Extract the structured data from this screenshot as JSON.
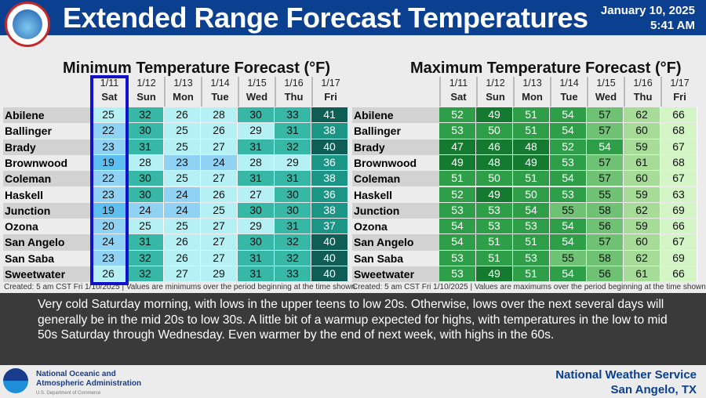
{
  "header": {
    "title": "Extended Range Forecast Temperatures",
    "date": "January 10, 2025",
    "time": "5:41 AM",
    "logo_text": "NATIONAL WEATHER SERVICE"
  },
  "columns": [
    {
      "date": "1/11",
      "day": "Sat"
    },
    {
      "date": "1/12",
      "day": "Sun"
    },
    {
      "date": "1/13",
      "day": "Mon"
    },
    {
      "date": "1/14",
      "day": "Tue"
    },
    {
      "date": "1/15",
      "day": "Wed"
    },
    {
      "date": "1/16",
      "day": "Thu"
    },
    {
      "date": "1/17",
      "day": "Fri"
    }
  ],
  "cities": [
    "Abilene",
    "Ballinger",
    "Brady",
    "Brownwood",
    "Coleman",
    "Haskell",
    "Junction",
    "Ozona",
    "San Angelo",
    "San Saba",
    "Sweetwater"
  ],
  "min_table": {
    "title": "Minimum Temperature Forecast (°F)",
    "note": "Created: 5 am CST Fri 1/10/2025  |  Values are minimums over the period beginning at the time shown.",
    "highlighted_column": "1/11",
    "values": [
      [
        25,
        32,
        26,
        28,
        30,
        33,
        41
      ],
      [
        22,
        30,
        25,
        26,
        29,
        31,
        38
      ],
      [
        23,
        31,
        25,
        27,
        31,
        32,
        40
      ],
      [
        19,
        28,
        23,
        24,
        28,
        29,
        36
      ],
      [
        22,
        30,
        25,
        27,
        31,
        31,
        38
      ],
      [
        23,
        30,
        24,
        26,
        27,
        30,
        36
      ],
      [
        19,
        24,
        24,
        25,
        30,
        30,
        38
      ],
      [
        20,
        25,
        25,
        27,
        29,
        31,
        37
      ],
      [
        24,
        31,
        26,
        27,
        30,
        32,
        40
      ],
      [
        23,
        32,
        26,
        27,
        31,
        32,
        40
      ],
      [
        26,
        32,
        27,
        29,
        31,
        33,
        40
      ]
    ]
  },
  "max_table": {
    "title": "Maximum Temperature Forecast (°F)",
    "note": "Created: 5 am CST Fri 1/10/2025  |  Values are maximums over the period beginning at the time shown.",
    "values": [
      [
        52,
        49,
        51,
        54,
        57,
        62,
        66
      ],
      [
        53,
        50,
        51,
        54,
        57,
        60,
        68
      ],
      [
        47,
        46,
        48,
        52,
        54,
        59,
        67
      ],
      [
        49,
        48,
        49,
        53,
        57,
        61,
        68
      ],
      [
        51,
        50,
        51,
        54,
        57,
        60,
        67
      ],
      [
        52,
        49,
        50,
        53,
        55,
        59,
        63
      ],
      [
        53,
        53,
        54,
        55,
        58,
        62,
        69
      ],
      [
        54,
        53,
        53,
        54,
        56,
        59,
        66
      ],
      [
        54,
        51,
        51,
        54,
        57,
        60,
        67
      ],
      [
        53,
        51,
        53,
        55,
        58,
        62,
        69
      ],
      [
        53,
        49,
        51,
        54,
        56,
        61,
        66
      ]
    ]
  },
  "discussion": "Very cold Saturday morning, with lows in the upper teens to low 20s. Otherwise, lows over the next several days will generally be in the mid 20s to low 30s. A little bit of a warmup expected for highs, with temperatures in the low to mid 50s Saturday through Wednesday. Even warmer by the end of next week, with highs in the 60s.",
  "footer": {
    "noaa_line1": "National Oceanic and",
    "noaa_line2": "Atmospheric Administration",
    "noaa_line3": "U.S. Department of Commerce",
    "office_line1": "National Weather Service",
    "office_line2": "San Angelo, TX"
  },
  "colors": {
    "header_bg": "#0b3f8f",
    "highlight_box": "#1111cc",
    "discussion_bg": "#3a3a3a"
  }
}
